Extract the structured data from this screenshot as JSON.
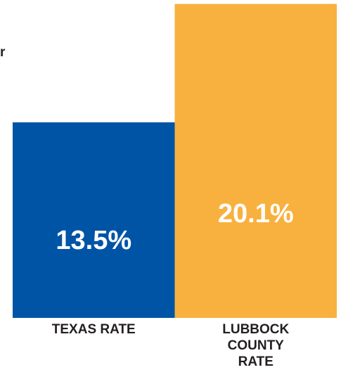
{
  "chart_data": {
    "type": "bar",
    "annotation": "r",
    "categories": [
      "TEXAS RATE",
      "LUBBOCK COUNTY RATE"
    ],
    "values": [
      13.5,
      20.1
    ],
    "value_labels": [
      "13.5%",
      "20.1%"
    ],
    "colors": [
      "#0054a6",
      "#f8b13f"
    ],
    "ylim": [
      2.6,
      20.2
    ]
  }
}
